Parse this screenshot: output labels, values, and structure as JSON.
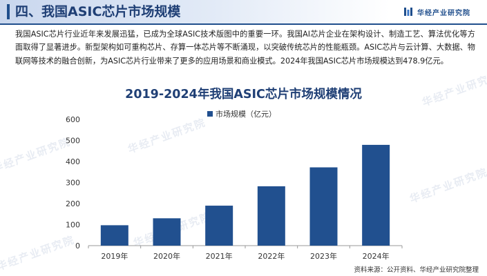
{
  "header": {
    "title": "四、我国ASIC芯片市场规模",
    "brand": "华经产业研究院"
  },
  "paragraph": "我国ASIC芯片行业近年来发展迅猛，已成为全球ASIC技术版图中的重要一环。我国AI芯片企业在架构设计、制造工艺、算法优化等方面取得了显著进步。新型架构如可重构芯片、存算一体芯片等不断涌现，以突破传统芯片的性能瓶颈。ASIC芯片与云计算、大数据、物联网等技术的融合创新，为ASIC芯片行业带来了更多的应用场景和商业模式。2024年我国ASIC芯片市场规模达到478.9亿元。",
  "watermark": "华经产业研究院",
  "chart_data": {
    "type": "bar",
    "title": "2019-2024年我国ASIC芯片市场规模情况",
    "categories": [
      "2019年",
      "2020年",
      "2021年",
      "2022年",
      "2023年",
      "2024年"
    ],
    "series": [
      {
        "name": "市场规模（亿元）",
        "values": [
          97,
          130,
          190,
          282,
          372,
          478.9
        ]
      }
    ],
    "ylim": [
      0,
      600
    ],
    "yticks": [
      "0",
      "100",
      "200",
      "300",
      "400",
      "500",
      "600"
    ],
    "grid": false,
    "legend_position": "top",
    "bar_color": "#21508f"
  },
  "source": "资料来源：公开资料、华经产业研究院整理"
}
